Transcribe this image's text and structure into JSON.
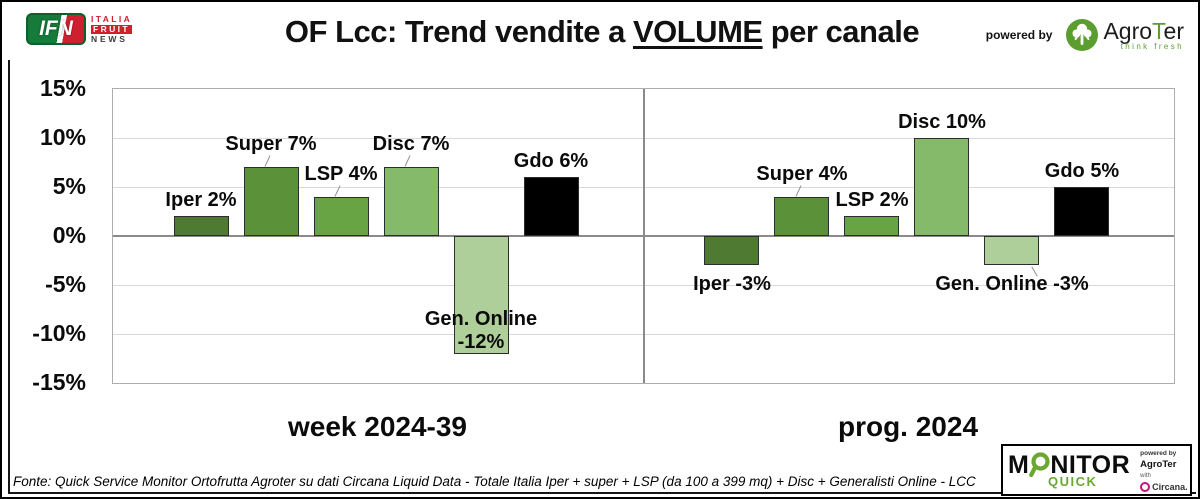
{
  "header": {
    "ifn_logo": {
      "abbr": "IFN",
      "word1": "ITALIA",
      "word2": "FRUIT",
      "word3": "NEWS"
    },
    "title": {
      "prefix": "OF Lcc: Trend vendite a ",
      "underlined": "VOLUME",
      "suffix": " per canale"
    },
    "powered_by": "powered by",
    "agroter": {
      "pre": "Agro",
      "t": "T",
      "post": "er",
      "tagline": "think fresh"
    }
  },
  "chart_data": {
    "type": "bar",
    "title": "OF Lcc: Trend vendite a VOLUME per canale",
    "unit": "%",
    "ylim": [
      -15,
      15
    ],
    "ystep": 5,
    "ytick_labels": [
      "15%",
      "10%",
      "5%",
      "0%",
      "-5%",
      "-10%",
      "-15%"
    ],
    "grid": true,
    "panels": [
      {
        "caption": "week 2024-39",
        "categories": [
          "Iper",
          "Super",
          "LSP",
          "Disc",
          "Gen. Online",
          "Gdo"
        ],
        "values": [
          2,
          7,
          4,
          7,
          -12,
          6
        ],
        "bars": [
          {
            "category": "Iper",
            "value": 2,
            "label": "Iper 2%",
            "color": "#4e7b31",
            "label_side": "above"
          },
          {
            "category": "Super",
            "value": 7,
            "label": "Super 7%",
            "color": "#5b9139",
            "label_side": "above",
            "leader": true
          },
          {
            "category": "LSP",
            "value": 4,
            "label": "LSP 4%",
            "color": "#68a443",
            "label_side": "above",
            "leader": true
          },
          {
            "category": "Disc",
            "value": 7,
            "label": "Disc 7%",
            "color": "#86ba6b",
            "label_side": "above",
            "leader": true
          },
          {
            "category": "Gen. Online",
            "value": -12,
            "label": "Gen. Online\n-12%",
            "color": "#aecf9a",
            "label_side": "inside-bottom"
          },
          {
            "category": "Gdo",
            "value": 6,
            "label": "Gdo 6%",
            "color": "#000000",
            "label_side": "above"
          }
        ]
      },
      {
        "caption": "prog. 2024",
        "categories": [
          "Iper",
          "Super",
          "LSP",
          "Disc",
          "Gen. Online",
          "Gdo"
        ],
        "values": [
          -3,
          4,
          2,
          10,
          -3,
          5
        ],
        "bars": [
          {
            "category": "Iper",
            "value": -3,
            "label": "Iper -3%",
            "color": "#4e7b31",
            "label_side": "below"
          },
          {
            "category": "Super",
            "value": 4,
            "label": "Super 4%",
            "color": "#5b9139",
            "label_side": "above",
            "leader": true
          },
          {
            "category": "LSP",
            "value": 2,
            "label": "LSP 2%",
            "color": "#68a443",
            "label_side": "above"
          },
          {
            "category": "Disc",
            "value": 10,
            "label": "Disc 10%",
            "color": "#86ba6b",
            "label_side": "above"
          },
          {
            "category": "Gen. Online",
            "value": -3,
            "label": "Gen. Online -3%",
            "color": "#aecf9a",
            "label_side": "below",
            "leader": true
          },
          {
            "category": "Gdo",
            "value": 5,
            "label": "Gdo 5%",
            "color": "#000000",
            "label_side": "above"
          }
        ]
      }
    ],
    "colors": {
      "iper": "#4e7b31",
      "super": "#5b9139",
      "lsp": "#68a443",
      "disc": "#86ba6b",
      "gen_online": "#aecf9a",
      "gdo": "#000000",
      "gridline": "#d9d9d9",
      "zero_line": "#8a8a8a"
    }
  },
  "footer": {
    "fonte": "Fonte: Quick Service Monitor Ortofrutta Agroter su dati Circana Liquid Data - Totale Italia Iper + super + LSP (da 100 a 399 mq) + Disc + Generalisti Online - LCC",
    "monitor_logo": {
      "word_m": "M",
      "word_rest": "NITOR",
      "quick": "QUICK",
      "powered_by": "powered by",
      "agroter": "AgroTer",
      "with": "with",
      "circana": "Circana."
    }
  }
}
